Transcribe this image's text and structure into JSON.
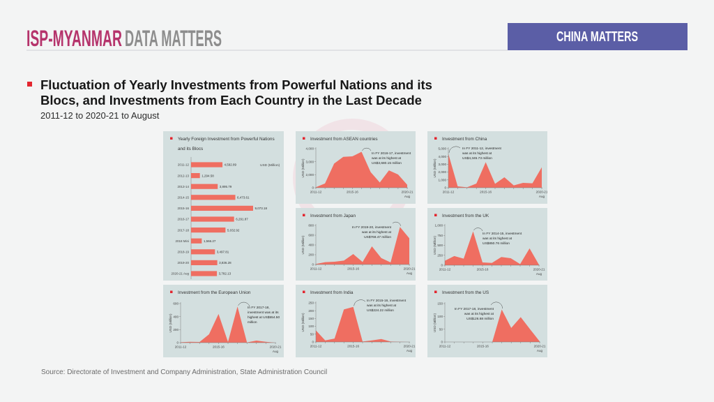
{
  "header": {
    "brand": "ISP-MYANMAR",
    "brand_suffix": "DATA MATTERS",
    "section_badge": "CHINA MATTERS"
  },
  "title": {
    "line1": "Fluctuation of Yearly Investments from Powerful Nations and its",
    "line2": "Blocs, and Investments from Each Country in the Last Decade",
    "subtitle": "2011-12 to 2020-21 to August"
  },
  "source": "Source: Directorate of Investment and Company Administration, State Administration Council",
  "colors": {
    "brand": "#b5336b",
    "brand_suffix": "#8d8d8d",
    "badge_bg": "#5b5ea6",
    "accent_red": "#e3262f",
    "area_fill": "#ef6e61",
    "panel_bg": "#d3dfdf"
  },
  "chart_data": [
    {
      "id": "powerful-nations",
      "type": "bar",
      "orientation": "horizontal",
      "title": "Yearly Foreign Investment from Powerful Nations and its Blocs",
      "title_lines": [
        "Yearly Foreign Investment from Powerful Nations",
        "and its Blocs"
      ],
      "unit_label": "USD (Million)",
      "categories": [
        "2011-12",
        "2012-13",
        "2013-14",
        "2014-15",
        "2015-16",
        "2016-17",
        "2017-18",
        "2018 Mini",
        "2018-19",
        "2019-20",
        "2020-21 Aug"
      ],
      "values": [
        4592.89,
        1294.58,
        3895.79,
        6473.61,
        9073.18,
        6291.87,
        5032.92,
        1566.27,
        3497.81,
        3836.28,
        3782.13
      ],
      "value_labels": [
        "4,592.89",
        "1,294.58",
        "3,895.79",
        "6,473.61",
        "9,073.18",
        "6,291.87",
        "5,032.92",
        "1,566.27",
        "3,497.81",
        "3,836.28",
        "3,782.13"
      ]
    },
    {
      "id": "asean",
      "type": "area",
      "title": "Investment from ASEAN countries",
      "ylabel": "USD (Million)",
      "x": [
        "2011-12",
        "2012-13",
        "2013-14",
        "2014-15",
        "2015-16",
        "2016-17",
        "2017-18",
        "2018 Mini",
        "2018-19",
        "2019-20",
        "2020-21 Aug"
      ],
      "xticks": [
        {
          "index": 0,
          "label": "2011-12"
        },
        {
          "index": 4,
          "label": "2015-16"
        },
        {
          "index": 10,
          "label": "2020-21",
          "sublabel": "Aug"
        }
      ],
      "yticks": [
        "0",
        "2,000",
        "3,000",
        "4,000"
      ],
      "ylim": [
        0,
        4000
      ],
      "values": [
        50,
        440,
        2470,
        3160,
        3210,
        3680.15,
        1600,
        540,
        1780,
        1360,
        300
      ],
      "annotation": {
        "lines": [
          "In FY 2016-17, investment",
          "was at its highest at",
          "US$3,680.15 million"
        ]
      }
    },
    {
      "id": "china",
      "type": "area",
      "title": "Investment from China",
      "ylabel": "USD (Million)",
      "x": [
        "2011-12",
        "2012-13",
        "2013-14",
        "2014-15",
        "2015-16",
        "2016-17",
        "2017-18",
        "2018 Mini",
        "2018-19",
        "2019-20",
        "2020-21 Aug"
      ],
      "xticks": [
        {
          "index": 0,
          "label": "2011-12"
        },
        {
          "index": 4,
          "label": "2015-16"
        },
        {
          "index": 10,
          "label": "2020-21",
          "sublabel": "Aug"
        }
      ],
      "yticks": [
        "0",
        "1,000",
        "2,000",
        "3,000",
        "4,000",
        "5,000"
      ],
      "ylim": [
        0,
        5000
      ],
      "values": [
        4345.73,
        180,
        60,
        530,
        3270,
        500,
        1340,
        300,
        620,
        570,
        2620
      ],
      "annotation": {
        "lines": [
          "In FY 2011-12, investment",
          "was at its highest at",
          "US$4,345.73 million"
        ]
      }
    },
    {
      "id": "japan",
      "type": "area",
      "title": "Investment from Japan",
      "ylabel": "USD (Million)",
      "x": [
        "2011-12",
        "2012-13",
        "2013-14",
        "2014-15",
        "2015-16",
        "2016-17",
        "2017-18",
        "2018 Mini",
        "2018-19",
        "2019-20",
        "2020-21 Aug"
      ],
      "xticks": [
        {
          "index": 0,
          "label": "2011-12"
        },
        {
          "index": 4,
          "label": "2015-16"
        },
        {
          "index": 10,
          "label": "2020-21",
          "sublabel": "Aug"
        }
      ],
      "yticks": [
        "0",
        "200",
        "400",
        "600",
        "800"
      ],
      "ylim": [
        0,
        800
      ],
      "values": [
        10,
        48,
        57,
        81,
        214,
        52,
        371,
        133,
        43,
        768.47,
        538
      ],
      "annotation": {
        "lines": [
          "In FY 2019-20, investment",
          "was at its highest at",
          "US$768.47 million"
        ]
      }
    },
    {
      "id": "uk",
      "type": "area",
      "title": "Investment from the UK",
      "ylabel": "USD (Million)",
      "x": [
        "2011-12",
        "2012-13",
        "2013-14",
        "2014-15",
        "2015-16",
        "2016-17",
        "2017-18",
        "2018 Mini",
        "2018-19",
        "2019-20",
        "2020-21 Aug"
      ],
      "xticks": [
        {
          "index": 0,
          "label": "2011-12"
        },
        {
          "index": 4,
          "label": "2015-16"
        },
        {
          "index": 10,
          "label": "2020-21",
          "sublabel": "Aug"
        }
      ],
      "yticks": [
        "0",
        "250",
        "500",
        "750",
        "1,000"
      ],
      "ylim": [
        0,
        1000
      ],
      "values": [
        112,
        230,
        165,
        850.76,
        70,
        58,
        205,
        176,
        29,
        423,
        12
      ],
      "annotation": {
        "lines": [
          "In FY 2014-15, investment",
          "was at its highest at",
          "US$850.76 million"
        ]
      }
    },
    {
      "id": "eu",
      "type": "area",
      "title": "Investment from the European Union",
      "ylabel": "USD (Million)",
      "x": [
        "2011-12",
        "2012-13",
        "2013-14",
        "2014-15",
        "2015-16",
        "2016-17",
        "2017-18",
        "2018 Mini",
        "2018-19",
        "2019-20",
        "2020-21 Aug"
      ],
      "xticks": [
        {
          "index": 0,
          "label": "2011-12"
        },
        {
          "index": 4,
          "label": "2015-16"
        },
        {
          "index": 10,
          "label": "2020-21",
          "sublabel": "Aug"
        }
      ],
      "yticks": [
        "0",
        "200",
        "400",
        "600"
      ],
      "ylim": [
        0,
        600
      ],
      "values": [
        7,
        14,
        11,
        129,
        440,
        11,
        554.5,
        4,
        32,
        14,
        0
      ],
      "annotation": {
        "lines": [
          "In FY 2017-18,",
          "investment was at its",
          "highest at US$554.50",
          "million"
        ]
      }
    },
    {
      "id": "india",
      "type": "area",
      "title": "Investment from India",
      "ylabel": "USD (Million)",
      "x": [
        "2011-12",
        "2012-13",
        "2013-14",
        "2014-15",
        "2015-16",
        "2016-17",
        "2017-18",
        "2018 Mini",
        "2018-19",
        "2019-20",
        "2020-21 Aug"
      ],
      "xticks": [
        {
          "index": 0,
          "label": "2011-12"
        },
        {
          "index": 4,
          "label": "2015-16"
        },
        {
          "index": 10,
          "label": "2020-21",
          "sublabel": "Aug"
        }
      ],
      "yticks": [
        "0",
        "50",
        "100",
        "150",
        "200",
        "250"
      ],
      "ylim": [
        0,
        250
      ],
      "values": [
        74,
        10,
        22,
        208,
        224.22,
        3,
        10,
        19,
        3,
        1,
        0
      ],
      "annotation": {
        "lines": [
          "In FY 2015-16, investment",
          "was at its highest at",
          "US$224.22 million"
        ]
      }
    },
    {
      "id": "us",
      "type": "area",
      "title": "Investment from the US",
      "ylabel": "USD (Million)",
      "x": [
        "2011-12",
        "2012-13",
        "2013-14",
        "2014-15",
        "2015-16",
        "2016-17",
        "2017-18",
        "2018 Mini",
        "2018-19",
        "2019-20",
        "2020-21 Aug"
      ],
      "xticks": [
        {
          "index": 0,
          "label": "2011-12"
        },
        {
          "index": 4,
          "label": "2015-16"
        },
        {
          "index": 10,
          "label": "2020-21",
          "sublabel": "Aug"
        }
      ],
      "yticks": [
        "0",
        "50",
        "100",
        "150"
      ],
      "ylim": [
        0,
        150
      ],
      "values": [
        0,
        0,
        0,
        0,
        0,
        0,
        126.68,
        55,
        97,
        49,
        2
      ],
      "annotation": {
        "lines": [
          "In FY 2017-18, investment",
          "was at its highest at",
          "US$126.68 million"
        ]
      }
    }
  ]
}
